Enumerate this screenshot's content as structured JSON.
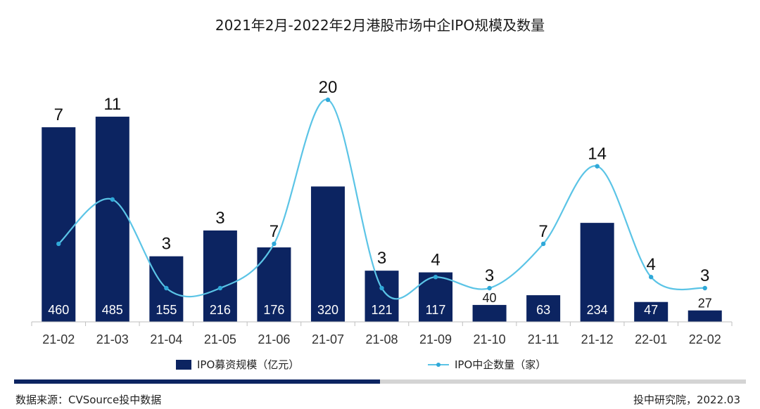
{
  "chart_data": {
    "type": "bar+line",
    "title": "2021年2月-2022年2月港股市场中企IPO规模及数量",
    "categories": [
      "21-02",
      "21-03",
      "21-04",
      "21-05",
      "21-06",
      "21-07",
      "21-08",
      "21-09",
      "21-10",
      "21-11",
      "21-12",
      "22-01",
      "22-02"
    ],
    "series": [
      {
        "name": "IPO募资规模（亿元）",
        "kind": "bar",
        "color": "#0c2461",
        "values": [
          460,
          485,
          155,
          216,
          176,
          320,
          121,
          117,
          40,
          63,
          234,
          47,
          27
        ]
      },
      {
        "name": "IPO中企数量（家）",
        "kind": "line",
        "color": "#5bc4e6",
        "values": [
          7,
          11,
          3,
          3,
          7,
          20,
          3,
          4,
          3,
          7,
          14,
          4,
          3
        ]
      }
    ],
    "bar_axis_max": 500,
    "line_axis_max": 25
  },
  "legend": {
    "bar_label": "IPO募资规模（亿元）",
    "line_label": "IPO中企数量（家）"
  },
  "footer": {
    "source": "数据来源：CVSource投中数据",
    "credit": "投中研究院，2022.03"
  },
  "progress": {
    "fraction": 0.5
  }
}
